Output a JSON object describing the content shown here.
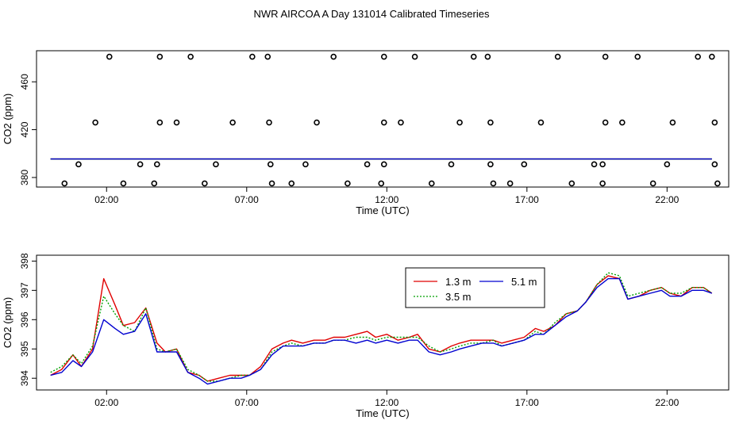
{
  "figure": {
    "title": "NWR AIRCOA A  Day 131014  Calibrated Timeseries"
  },
  "chart_data": [
    {
      "type": "scatter",
      "xlabel": "Time (UTC)",
      "ylabel": "CO2 (ppm)",
      "xlim": [
        -0.5,
        24.2
      ],
      "ylim": [
        372,
        486
      ],
      "x_ticks": [
        2,
        7,
        12,
        17,
        22
      ],
      "x_tick_labels": [
        "02:00",
        "07:00",
        "12:00",
        "17:00",
        "22:00"
      ],
      "y_ticks": [
        380,
        420,
        460
      ],
      "grid": false,
      "legend": "none",
      "series": [
        {
          "color": "#000000",
          "points": [
            [
              2.1,
              481
            ],
            [
              3.9,
              481
            ],
            [
              5.0,
              481
            ],
            [
              7.2,
              481
            ],
            [
              7.75,
              481
            ],
            [
              10.1,
              481
            ],
            [
              11.9,
              481
            ],
            [
              13.0,
              481
            ],
            [
              15.1,
              481
            ],
            [
              15.6,
              481
            ],
            [
              18.1,
              481
            ],
            [
              19.8,
              481
            ],
            [
              20.95,
              481
            ],
            [
              23.1,
              481
            ],
            [
              23.6,
              481
            ],
            [
              1.6,
              426
            ],
            [
              3.9,
              426
            ],
            [
              4.5,
              426
            ],
            [
              6.5,
              426
            ],
            [
              7.8,
              426
            ],
            [
              9.5,
              426
            ],
            [
              11.9,
              426
            ],
            [
              12.5,
              426
            ],
            [
              14.6,
              426
            ],
            [
              15.7,
              426
            ],
            [
              17.5,
              426
            ],
            [
              19.8,
              426
            ],
            [
              20.4,
              426
            ],
            [
              22.2,
              426
            ],
            [
              23.7,
              426
            ],
            [
              1.0,
              391
            ],
            [
              3.2,
              391
            ],
            [
              3.8,
              391
            ],
            [
              5.9,
              391
            ],
            [
              7.85,
              391
            ],
            [
              9.1,
              391
            ],
            [
              11.3,
              391
            ],
            [
              11.9,
              391
            ],
            [
              14.3,
              391
            ],
            [
              15.7,
              391
            ],
            [
              16.9,
              391
            ],
            [
              19.4,
              391
            ],
            [
              19.7,
              391
            ],
            [
              22.0,
              391
            ],
            [
              23.7,
              391
            ],
            [
              0.5,
              375
            ],
            [
              2.6,
              375
            ],
            [
              3.7,
              375
            ],
            [
              5.5,
              375
            ],
            [
              7.9,
              375
            ],
            [
              8.6,
              375
            ],
            [
              10.6,
              375
            ],
            [
              11.8,
              375
            ],
            [
              13.6,
              375
            ],
            [
              15.8,
              375
            ],
            [
              16.4,
              375
            ],
            [
              18.6,
              375
            ],
            [
              19.7,
              375
            ],
            [
              21.5,
              375
            ],
            [
              23.8,
              375
            ]
          ]
        },
        {
          "name": "1.3 m",
          "color": "#e00000",
          "level": 395.5
        },
        {
          "name": "3.5 m",
          "color": "#00a000",
          "level": 395.5
        },
        {
          "name": "5.1 m",
          "color": "#0000d0",
          "level": 395.5
        }
      ]
    },
    {
      "type": "line",
      "xlabel": "Time (UTC)",
      "ylabel": "CO2 (ppm)",
      "xlim": [
        -0.5,
        24.2
      ],
      "ylim": [
        393.6,
        398.2
      ],
      "x_ticks": [
        2,
        7,
        12,
        17,
        22
      ],
      "x_tick_labels": [
        "02:00",
        "07:00",
        "12:00",
        "17:00",
        "22:00"
      ],
      "y_ticks": [
        394,
        395,
        396,
        397,
        398
      ],
      "grid": false,
      "legend": "upper center",
      "x": [
        0.0,
        0.4,
        0.8,
        1.1,
        1.5,
        1.9,
        2.3,
        2.6,
        3.0,
        3.4,
        3.8,
        4.1,
        4.5,
        4.9,
        5.3,
        5.6,
        6.0,
        6.4,
        6.8,
        7.1,
        7.5,
        7.9,
        8.3,
        8.6,
        9.0,
        9.4,
        9.8,
        10.1,
        10.5,
        10.9,
        11.3,
        11.6,
        12.0,
        12.4,
        12.8,
        13.1,
        13.5,
        13.9,
        14.3,
        14.6,
        15.0,
        15.4,
        15.8,
        16.1,
        16.5,
        16.9,
        17.3,
        17.6,
        18.0,
        18.4,
        18.8,
        19.1,
        19.5,
        19.9,
        20.3,
        20.6,
        21.0,
        21.4,
        21.8,
        22.1,
        22.5,
        22.9,
        23.3,
        23.6
      ],
      "series": [
        {
          "name": "1.3 m",
          "color": "#e00000",
          "dash": "solid",
          "values": [
            394.1,
            394.3,
            394.8,
            394.4,
            395.0,
            397.4,
            396.5,
            395.8,
            395.9,
            396.4,
            395.2,
            394.9,
            395.0,
            394.2,
            394.1,
            393.9,
            394.0,
            394.1,
            394.1,
            394.1,
            394.4,
            395.0,
            395.2,
            395.3,
            395.2,
            395.3,
            395.3,
            395.4,
            395.4,
            395.5,
            395.6,
            395.4,
            395.5,
            395.3,
            395.4,
            395.5,
            395.0,
            394.9,
            395.1,
            395.2,
            395.3,
            395.3,
            395.3,
            395.2,
            395.3,
            395.4,
            395.7,
            395.6,
            395.8,
            396.2,
            396.3,
            396.6,
            397.2,
            397.5,
            397.4,
            396.7,
            396.8,
            397.0,
            397.1,
            396.9,
            396.8,
            397.1,
            397.1,
            396.9
          ]
        },
        {
          "name": "3.5 m",
          "color": "#00a000",
          "dash": "dotted",
          "values": [
            394.2,
            394.4,
            394.8,
            394.5,
            395.1,
            396.8,
            396.2,
            395.8,
            395.6,
            396.4,
            395.0,
            394.9,
            395.0,
            394.3,
            394.1,
            393.9,
            393.9,
            394.0,
            394.1,
            394.1,
            394.3,
            394.9,
            395.1,
            395.2,
            395.1,
            395.2,
            395.2,
            395.3,
            395.3,
            395.4,
            395.4,
            395.3,
            395.4,
            395.4,
            395.4,
            395.4,
            395.1,
            394.9,
            395.0,
            395.1,
            395.2,
            395.2,
            395.3,
            395.1,
            395.2,
            395.3,
            395.6,
            395.5,
            395.9,
            396.2,
            396.3,
            396.6,
            397.2,
            397.6,
            397.5,
            396.8,
            396.9,
            397.0,
            397.1,
            396.9,
            396.9,
            397.1,
            397.1,
            396.9
          ]
        },
        {
          "name": "5.1 m",
          "color": "#0000d0",
          "dash": "solid",
          "values": [
            394.1,
            394.2,
            394.6,
            394.4,
            394.9,
            396.0,
            395.7,
            395.5,
            395.6,
            396.2,
            394.9,
            394.9,
            394.9,
            394.2,
            394.0,
            393.8,
            393.9,
            394.0,
            394.0,
            394.1,
            394.3,
            394.8,
            395.1,
            395.1,
            395.1,
            395.2,
            395.2,
            395.3,
            395.3,
            395.2,
            395.3,
            395.2,
            395.3,
            395.2,
            395.3,
            395.3,
            394.9,
            394.8,
            394.9,
            395.0,
            395.1,
            395.2,
            395.2,
            395.1,
            395.2,
            395.3,
            395.5,
            395.5,
            395.8,
            396.1,
            396.3,
            396.6,
            397.1,
            397.4,
            397.4,
            396.7,
            396.8,
            396.9,
            397.0,
            396.8,
            396.8,
            397.0,
            397.0,
            396.9
          ]
        }
      ]
    }
  ]
}
